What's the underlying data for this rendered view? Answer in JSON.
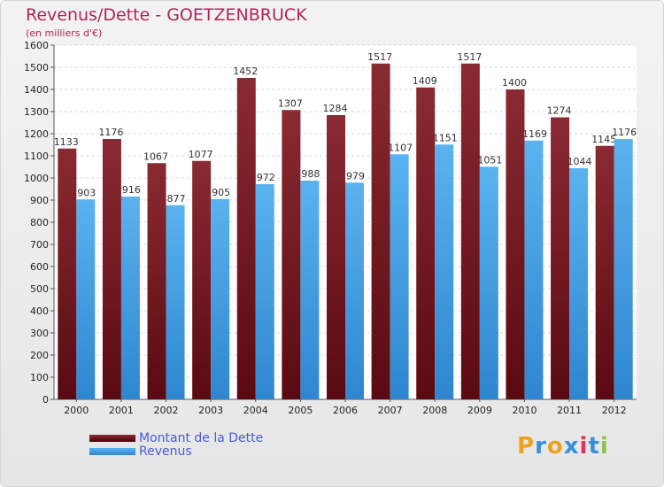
{
  "title": "Revenus/Dette - GOETZENBRUCK",
  "subtitle": "(en milliers d'€)",
  "colors": {
    "dette": "#7a1f28",
    "revenus": "#4aa5e8",
    "title": "#b0245a",
    "legend_text": "#4a5bd6"
  },
  "legend": [
    "Montant de la Dette",
    "Revenus"
  ],
  "logo": {
    "letters": [
      "P",
      "r",
      "o",
      "x",
      "i",
      "t",
      "i"
    ],
    "colors": [
      "#f0a020",
      "#3a8fd8",
      "#f0a020",
      "#3a8fd8",
      "#e03060",
      "#3a8fd8",
      "#8bc34a"
    ]
  },
  "chart_data": {
    "type": "bar",
    "title": "Revenus/Dette - GOETZENBRUCK",
    "xlabel": "",
    "ylabel": "(en milliers d'€)",
    "ylim": [
      0,
      1600
    ],
    "yticks": [
      0,
      100,
      200,
      300,
      400,
      500,
      600,
      700,
      800,
      900,
      1000,
      1100,
      1200,
      1300,
      1400,
      1500,
      1600
    ],
    "categories": [
      "2000",
      "2001",
      "2002",
      "2003",
      "2004",
      "2005",
      "2006",
      "2007",
      "2008",
      "2009",
      "2010",
      "2011",
      "2012"
    ],
    "series": [
      {
        "name": "Montant de la Dette",
        "values": [
          1133,
          1176,
          1067,
          1077,
          1452,
          1307,
          1284,
          1517,
          1409,
          1517,
          1400,
          1274,
          1145
        ]
      },
      {
        "name": "Revenus",
        "values": [
          903,
          916,
          877,
          905,
          972,
          988,
          979,
          1107,
          1151,
          1051,
          1169,
          1044,
          1176
        ]
      }
    ],
    "grid": true,
    "legend_position": "bottom-left"
  }
}
